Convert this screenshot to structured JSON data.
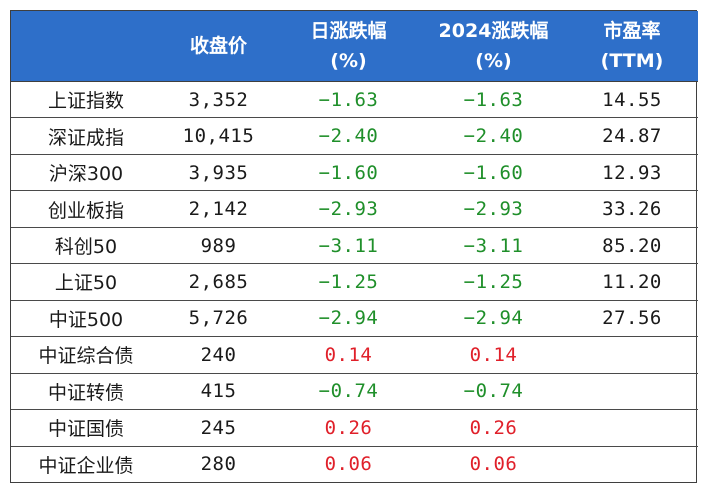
{
  "header": {
    "col0": "",
    "col1": "收盘价",
    "col2_line1": "日涨跌幅",
    "col2_line2": "(%)",
    "col3_line1": "2024涨跌幅",
    "col3_line2": "(%)",
    "col4_line1": "市盈率",
    "col4_line2": "(TTM)"
  },
  "colors": {
    "header_bg": "#2e6fc9",
    "negative": "#1f8f2a",
    "positive": "#e0202a"
  },
  "rows": [
    {
      "name": "上证指数",
      "close": "3,352",
      "daily": "−1.63",
      "ytd": "−1.63",
      "pe": "14.55"
    },
    {
      "name": "深证成指",
      "close": "10,415",
      "daily": "−2.40",
      "ytd": "−2.40",
      "pe": "24.87"
    },
    {
      "name": "沪深300",
      "close": "3,935",
      "daily": "−1.60",
      "ytd": "−1.60",
      "pe": "12.93"
    },
    {
      "name": "创业板指",
      "close": "2,142",
      "daily": "−2.93",
      "ytd": "−2.93",
      "pe": "33.26"
    },
    {
      "name": "科创50",
      "close": "989",
      "daily": "−3.11",
      "ytd": "−3.11",
      "pe": "85.20"
    },
    {
      "name": "上证50",
      "close": "2,685",
      "daily": "−1.25",
      "ytd": "−1.25",
      "pe": "11.20"
    },
    {
      "name": "中证500",
      "close": "5,726",
      "daily": "−2.94",
      "ytd": "−2.94",
      "pe": "27.56"
    },
    {
      "name": "中证综合债",
      "close": "240",
      "daily": "0.14",
      "ytd": "0.14",
      "pe": ""
    },
    {
      "name": "中证转债",
      "close": "415",
      "daily": "−0.74",
      "ytd": "−0.74",
      "pe": ""
    },
    {
      "name": "中证国债",
      "close": "245",
      "daily": "0.26",
      "ytd": "0.26",
      "pe": ""
    },
    {
      "name": "中证企业债",
      "close": "280",
      "daily": "0.06",
      "ytd": "0.06",
      "pe": ""
    }
  ]
}
